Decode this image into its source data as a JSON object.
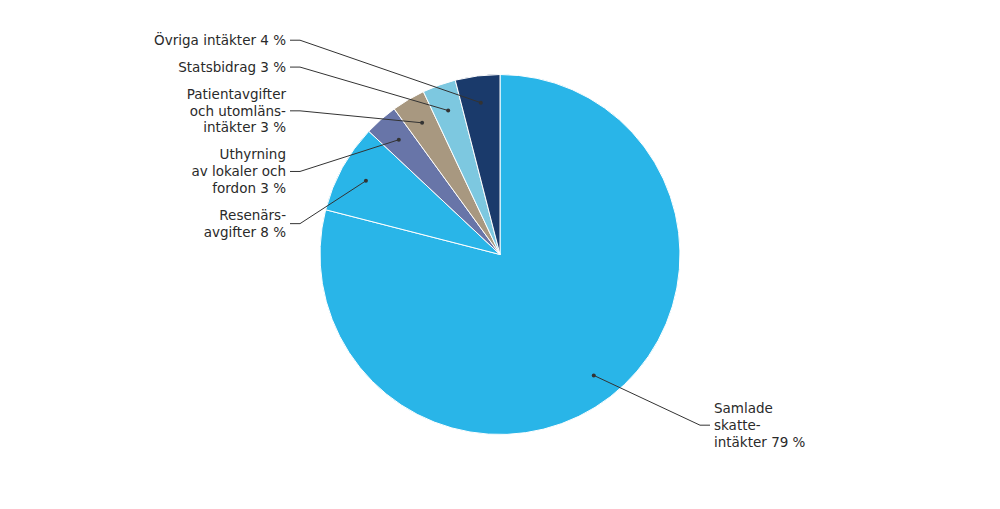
{
  "chart_data": {
    "type": "pie",
    "categories": [
      "Samlade\nskatte-\nintäkter 79 %",
      "Resenärs-\navgifter 8 %",
      "Uthyrning\nav lokaler och\nfordon 3 %",
      "Patientavgifter\noch utomläns-\nintäkter 3 %",
      "Statsbidrag 3 %",
      "Övriga intäkter 4 %"
    ],
    "values": [
      79,
      8,
      3,
      3,
      3,
      4
    ],
    "colors": [
      "#29B5E8",
      "#29B5E8",
      "#6875A8",
      "#A89880",
      "#7DC8E0",
      "#1A3A6B"
    ]
  }
}
